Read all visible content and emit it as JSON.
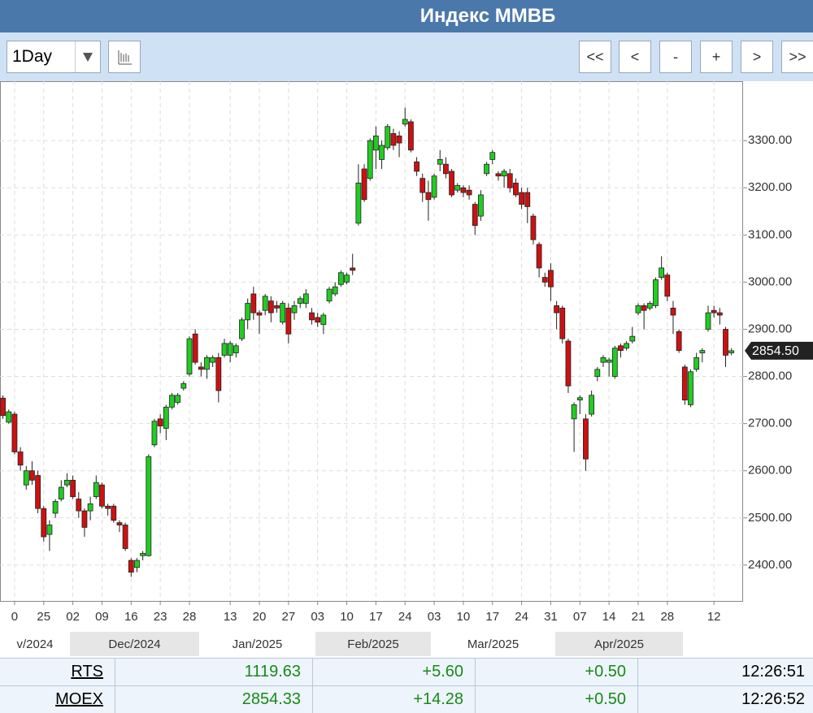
{
  "header": {
    "title": "Индекс ММВБ"
  },
  "toolbar": {
    "interval": "1Day",
    "nav": [
      "<<",
      "<",
      "-",
      "+",
      ">",
      ">>"
    ]
  },
  "chart_data": {
    "type": "candlestick",
    "x": [
      -2,
      -1,
      0,
      1,
      2,
      3,
      4,
      5,
      6,
      7,
      8,
      9,
      10,
      11,
      12,
      13,
      14,
      15,
      16,
      17,
      18,
      19,
      20,
      21,
      22,
      23,
      24,
      25,
      26,
      27,
      28,
      29,
      30,
      31,
      32,
      33,
      34,
      35,
      36,
      37,
      38,
      39,
      40,
      41,
      42,
      43,
      44,
      45,
      46,
      47,
      48,
      49,
      50,
      51,
      52,
      53,
      54,
      55,
      56,
      57,
      58,
      59,
      60,
      61,
      62,
      63,
      64,
      65,
      66,
      67,
      68,
      69,
      70,
      71,
      72,
      73,
      74,
      75,
      76,
      77,
      78,
      79,
      80,
      81,
      82,
      83,
      84,
      85,
      86,
      87,
      88,
      89,
      90,
      91,
      92,
      93,
      94,
      95,
      96,
      97,
      98,
      99,
      100,
      101,
      102,
      103,
      104,
      105,
      106,
      107,
      108,
      109,
      110,
      111,
      112,
      113,
      114,
      115,
      116,
      117,
      118,
      119,
      120,
      121,
      122,
      123
    ],
    "open": [
      2754,
      2703,
      2720,
      2640,
      2570,
      2600,
      2590,
      2520,
      2465,
      2510,
      2540,
      2570,
      2580,
      2540,
      2515,
      2515,
      2545,
      2570,
      2525,
      2525,
      2490,
      2485,
      2410,
      2395,
      2420,
      2420,
      2655,
      2710,
      2690,
      2735,
      2745,
      2775,
      2805,
      2890,
      2820,
      2815,
      2830,
      2840,
      2845,
      2845,
      2850,
      2880,
      2920,
      2975,
      2935,
      2940,
      2960,
      2950,
      2915,
      2945,
      2935,
      2955,
      2955,
      2935,
      2925,
      2910,
      2960,
      2975,
      2995,
      3000,
      3030,
      3125,
      3240,
      3220,
      3280,
      3260,
      3285,
      3315,
      3310,
      3335,
      3340,
      3255,
      3220,
      3190,
      3180,
      3250,
      3250,
      3235,
      3195,
      3200,
      3195,
      3165,
      3140,
      3230,
      3260,
      3230,
      3225,
      3230,
      3210,
      3190,
      3190,
      3140,
      3080,
      3010,
      3025,
      2950,
      2945,
      2875,
      2710,
      2750,
      2710,
      2720,
      2800,
      2830,
      2830,
      2800,
      2865,
      2860,
      2875,
      2935,
      2950,
      2945,
      2950,
      3010,
      3015,
      2945,
      2895,
      2820,
      2740,
      2815,
      2850,
      2900,
      2940,
      2935,
      2900,
      2850
    ],
    "high": [
      2760,
      2730,
      2725,
      2650,
      2610,
      2620,
      2600,
      2525,
      2495,
      2540,
      2580,
      2595,
      2590,
      2555,
      2520,
      2545,
      2590,
      2575,
      2530,
      2530,
      2495,
      2490,
      2415,
      2415,
      2430,
      2635,
      2710,
      2720,
      2740,
      2765,
      2765,
      2790,
      2885,
      2900,
      2830,
      2845,
      2845,
      2850,
      2880,
      2875,
      2870,
      2925,
      2965,
      2990,
      2940,
      2975,
      2970,
      2960,
      2960,
      2955,
      2960,
      2970,
      2985,
      2945,
      2935,
      2935,
      2990,
      3000,
      3025,
      3020,
      3060,
      3250,
      3250,
      3305,
      3330,
      3300,
      3335,
      3325,
      3320,
      3370,
      3345,
      3265,
      3230,
      3215,
      3230,
      3280,
      3265,
      3240,
      3210,
      3205,
      3205,
      3170,
      3195,
      3255,
      3280,
      3235,
      3240,
      3240,
      3220,
      3200,
      3200,
      3145,
      3085,
      3020,
      3040,
      2960,
      2950,
      2880,
      2745,
      2760,
      2720,
      2770,
      2820,
      2845,
      2840,
      2865,
      2870,
      2875,
      2905,
      2955,
      2955,
      2960,
      3010,
      3055,
      3020,
      2960,
      2900,
      2825,
      2815,
      2850,
      2860,
      2950,
      2950,
      2945,
      2905,
      2860
    ],
    "low": [
      2710,
      2700,
      2635,
      2600,
      2560,
      2570,
      2510,
      2450,
      2430,
      2500,
      2535,
      2565,
      2540,
      2500,
      2460,
      2495,
      2540,
      2520,
      2505,
      2490,
      2470,
      2430,
      2375,
      2385,
      2410,
      2418,
      2650,
      2680,
      2665,
      2730,
      2740,
      2770,
      2800,
      2825,
      2800,
      2795,
      2820,
      2745,
      2840,
      2830,
      2840,
      2875,
      2900,
      2920,
      2890,
      2930,
      2915,
      2935,
      2910,
      2870,
      2920,
      2945,
      2945,
      2910,
      2905,
      2890,
      2955,
      2970,
      2990,
      2995,
      3015,
      3120,
      3170,
      3215,
      3240,
      3240,
      3280,
      3280,
      3265,
      3330,
      3275,
      3225,
      3170,
      3130,
      3175,
      3235,
      3220,
      3180,
      3190,
      3180,
      3175,
      3100,
      3130,
      3225,
      3250,
      3215,
      3200,
      3190,
      3180,
      3155,
      3125,
      3080,
      3010,
      2990,
      2960,
      2900,
      2870,
      2765,
      2640,
      2720,
      2600,
      2715,
      2790,
      2820,
      2800,
      2795,
      2840,
      2855,
      2870,
      2930,
      2900,
      2940,
      2945,
      3005,
      2960,
      2890,
      2850,
      2740,
      2735,
      2810,
      2830,
      2895,
      2925,
      2910,
      2820,
      2845
    ],
    "close": [
      2717,
      2725,
      2640,
      2612,
      2600,
      2580,
      2520,
      2460,
      2485,
      2535,
      2565,
      2580,
      2545,
      2515,
      2480,
      2530,
      2575,
      2525,
      2520,
      2495,
      2485,
      2435,
      2385,
      2410,
      2425,
      2630,
      2705,
      2695,
      2735,
      2760,
      2760,
      2785,
      2880,
      2830,
      2815,
      2840,
      2840,
      2770,
      2870,
      2870,
      2865,
      2920,
      2955,
      2935,
      2930,
      2970,
      2935,
      2945,
      2955,
      2890,
      2950,
      2965,
      2975,
      2920,
      2915,
      2930,
      2985,
      2990,
      3020,
      3015,
      3025,
      3210,
      3175,
      3300,
      3310,
      3290,
      3330,
      3290,
      3295,
      3345,
      3280,
      3235,
      3190,
      3175,
      3225,
      3260,
      3230,
      3185,
      3205,
      3190,
      3185,
      3120,
      3185,
      3250,
      3275,
      3225,
      3235,
      3200,
      3185,
      3165,
      3160,
      3090,
      3030,
      3000,
      2990,
      2935,
      2880,
      2780,
      2740,
      2755,
      2625,
      2760,
      2815,
      2840,
      2835,
      2860,
      2855,
      2870,
      2885,
      2950,
      2940,
      2955,
      3005,
      3030,
      2970,
      2930,
      2855,
      2750,
      2810,
      2840,
      2855,
      2935,
      2935,
      2930,
      2845,
      2854.5
    ],
    "up_color": "#22cc22",
    "down_color": "#cc1111",
    "xlim": [
      -2.5,
      125
    ],
    "xticks": [
      0,
      {
        "value": 5,
        "label": "25"
      },
      {
        "value": 10,
        "label": "02"
      },
      {
        "value": 15,
        "label": "09"
      },
      {
        "value": 20,
        "label": "16"
      },
      {
        "value": 25,
        "label": "23"
      },
      {
        "value": 30,
        "label": "28"
      },
      {
        "value": 37,
        "label": "13"
      },
      {
        "value": 42,
        "label": "20"
      },
      {
        "value": 47,
        "label": "27"
      },
      {
        "value": 52,
        "label": "03"
      },
      {
        "value": 57,
        "label": "10"
      },
      {
        "value": 62,
        "label": "17"
      },
      {
        "value": 67,
        "label": "24"
      },
      {
        "value": 72,
        "label": "03"
      },
      {
        "value": 77,
        "label": "10"
      },
      {
        "value": 82,
        "label": "17"
      },
      {
        "value": 87,
        "label": "24"
      },
      {
        "value": 92,
        "label": "31"
      },
      {
        "value": 97,
        "label": "07"
      },
      {
        "value": 102,
        "label": "14"
      },
      {
        "value": 107,
        "label": "21"
      },
      {
        "value": 112,
        "label": "28"
      },
      {
        "value": 120,
        "label": "12"
      }
    ],
    "ylim": [
      2324,
      3426
    ],
    "yticks": [
      {
        "value": 2400,
        "label": "2400.00"
      },
      {
        "value": 2500,
        "label": "2500.00"
      },
      {
        "value": 2600,
        "label": "2600.00"
      },
      {
        "value": 2700,
        "label": "2700.00"
      },
      {
        "value": 2800,
        "label": "2800.00"
      },
      {
        "value": 2900,
        "label": "2900.00"
      },
      {
        "value": 3000,
        "label": "3000.00"
      },
      {
        "value": 3100,
        "label": "3100.00"
      },
      {
        "value": 3200,
        "label": "3200.00"
      },
      {
        "value": 3300,
        "label": "3300.00"
      }
    ],
    "last_price": {
      "value": 2854.5,
      "label": "2854.50"
    },
    "months": [
      "v/2024",
      "Dec/2024",
      "Jan/2025",
      "Feb/2025",
      "Mar/2025",
      "Apr/2025"
    ],
    "grid": true
  },
  "quotes": {
    "rows": [
      [
        "RTS",
        "1119.63",
        "+5.60",
        "+0.50",
        "12:26:51"
      ],
      [
        "MOEX",
        "2854.33",
        "+14.28",
        "+0.50",
        "12:26:52"
      ]
    ]
  }
}
